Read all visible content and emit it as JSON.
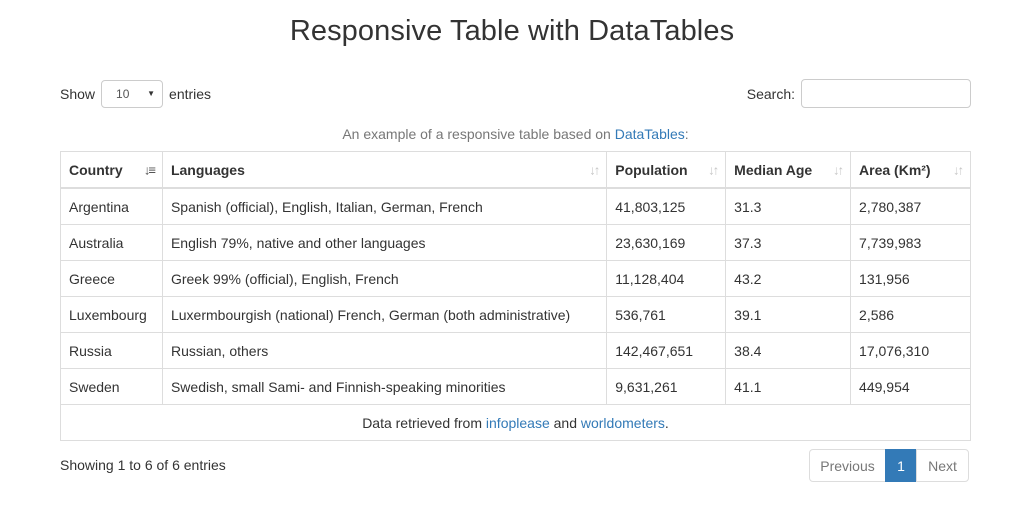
{
  "page": {
    "title": "Responsive Table with DataTables"
  },
  "length": {
    "show_label": "Show",
    "value": "10",
    "entries_label": "entries"
  },
  "search": {
    "label": "Search:",
    "value": "",
    "placeholder": ""
  },
  "caption": {
    "text": "An example of a responsive table based on ",
    "link": "DataTables",
    "suffix": ":"
  },
  "table": {
    "headers": [
      "Country",
      "Languages",
      "Population",
      "Median Age",
      "Area (Km²)"
    ],
    "sort": {
      "active_column": "Country",
      "direction": "ascending"
    },
    "rows": [
      [
        "Argentina",
        "Spanish (official), English, Italian, German, French",
        "41,803,125",
        "31.3",
        "2,780,387"
      ],
      [
        "Australia",
        "English 79%, native and other languages",
        "23,630,169",
        "37.3",
        "7,739,983"
      ],
      [
        "Greece",
        "Greek 99% (official), English, French",
        "11,128,404",
        "43.2",
        "131,956"
      ],
      [
        "Luxembourg",
        "Luxermbourgish (national) French, German (both administrative)",
        "536,761",
        "39.1",
        "2,586"
      ],
      [
        "Russia",
        "Russian, others",
        "142,467,651",
        "38.4",
        "17,076,310"
      ],
      [
        "Sweden",
        "Swedish, small Sami- and Finnish-speaking minorities",
        "9,631,261",
        "41.1",
        "449,954"
      ]
    ],
    "footer": {
      "text": "Data retrieved from ",
      "link1": "infoplease",
      "and": " and ",
      "link2": "worldometers",
      "end": "."
    }
  },
  "info": {
    "text": "Showing 1 to 6 of 6 entries"
  },
  "pagination": {
    "previous": "Previous",
    "current": "1",
    "next": "Next"
  },
  "colors": {
    "accent": "#337ab7",
    "border": "#dddddd",
    "muted": "#777777"
  }
}
